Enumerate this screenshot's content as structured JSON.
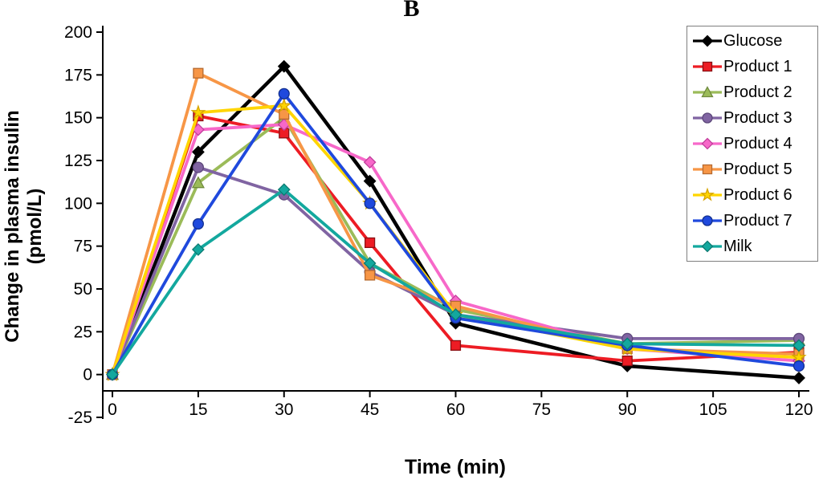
{
  "chart_data": {
    "type": "line",
    "panel_label": "B",
    "title": "",
    "xlabel": "Time (min)",
    "ylabel": "Change in plasma insulin\n(pmol/L)",
    "x": [
      0,
      15,
      30,
      45,
      60,
      90,
      120
    ],
    "x_ticks": [
      0,
      15,
      30,
      45,
      60,
      75,
      90,
      105,
      120
    ],
    "y_ticks": [
      -25,
      0,
      25,
      50,
      75,
      100,
      125,
      150,
      175,
      200
    ],
    "xlim": [
      0,
      120
    ],
    "ylim": [
      -25,
      200
    ],
    "grid": false,
    "legend_position": "top-right",
    "axis_color": "#000000",
    "series": [
      {
        "name": "Glucose",
        "color": "#000000",
        "marker": "diamond",
        "marker_stroke": "#000000",
        "values": [
          0,
          130,
          180,
          113,
          30,
          5,
          -2
        ]
      },
      {
        "name": "Product 1",
        "color": "#ed1c24",
        "marker": "square",
        "marker_stroke": "#8b1013",
        "values": [
          0,
          151,
          141,
          77,
          17,
          8,
          13
        ]
      },
      {
        "name": "Product 2",
        "color": "#9bbb59",
        "marker": "triangle",
        "marker_stroke": "#6f8a3d",
        "values": [
          0,
          112,
          150,
          65,
          38,
          18,
          20
        ]
      },
      {
        "name": "Product 3",
        "color": "#8064a2",
        "marker": "circle",
        "marker_stroke": "#5c477a",
        "values": [
          0,
          121,
          105,
          60,
          35,
          21,
          21
        ]
      },
      {
        "name": "Product 4",
        "color": "#f768c9",
        "marker": "diamond",
        "marker_stroke": "#c23f9c",
        "values": [
          0,
          143,
          146,
          124,
          43,
          15,
          8
        ]
      },
      {
        "name": "Product 5",
        "color": "#f79646",
        "marker": "square",
        "marker_stroke": "#b66a30",
        "values": [
          0,
          176,
          152,
          58,
          40,
          15,
          12
        ]
      },
      {
        "name": "Product 6",
        "color": "#ffd500",
        "marker": "star",
        "marker_stroke": "#d6a400",
        "values": [
          0,
          153,
          157,
          100,
          35,
          15,
          10
        ]
      },
      {
        "name": "Product 7",
        "color": "#1f49dd",
        "marker": "circle",
        "marker_stroke": "#13308f",
        "values": [
          0,
          88,
          164,
          100,
          33,
          17,
          5
        ]
      },
      {
        "name": "Milk",
        "color": "#13a89e",
        "marker": "diamond",
        "marker_stroke": "#0c7a72",
        "values": [
          0,
          73,
          108,
          65,
          35,
          18,
          17
        ]
      }
    ]
  }
}
